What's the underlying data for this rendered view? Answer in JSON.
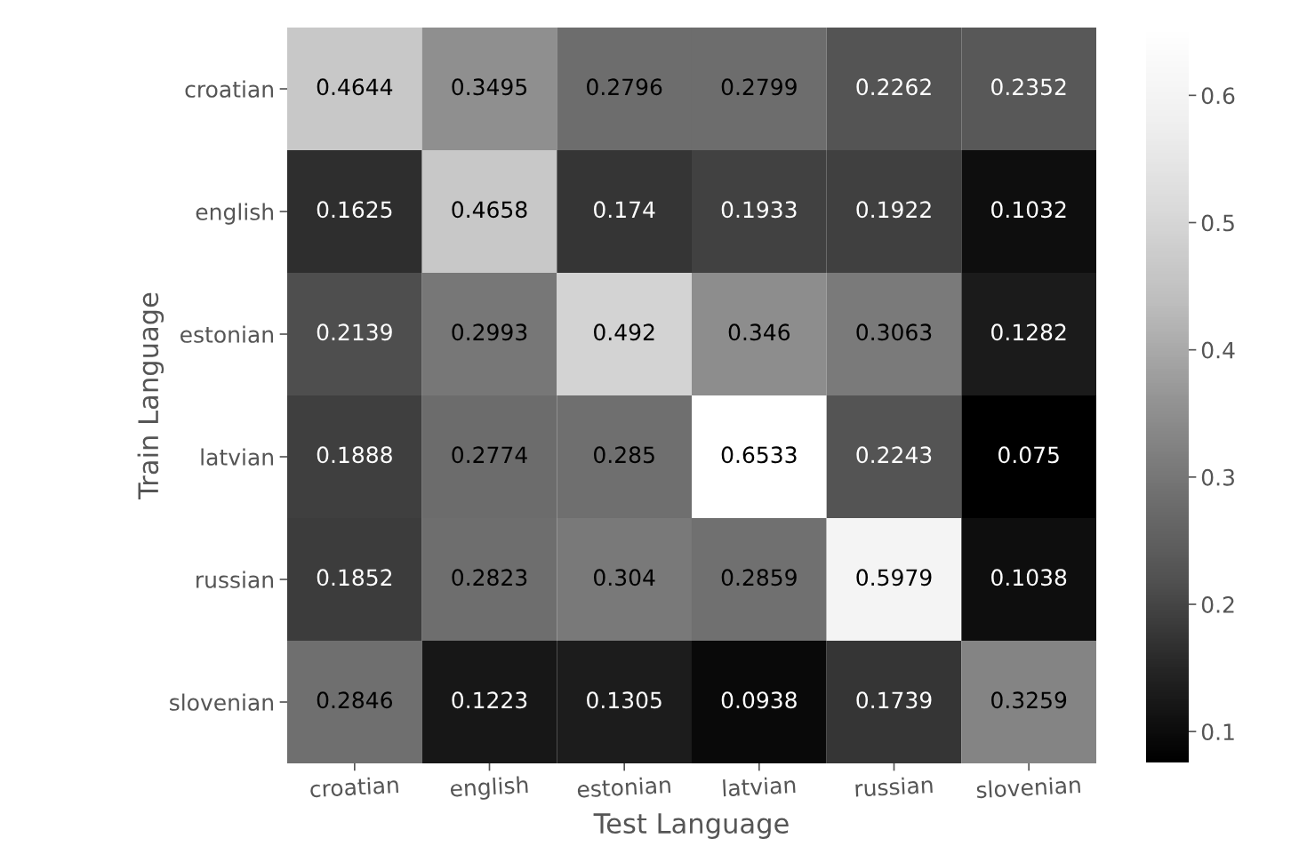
{
  "chart_data": {
    "type": "heatmap",
    "xlabel": "Test Language",
    "ylabel": "Train Language",
    "categories": [
      "croatian",
      "english",
      "estonian",
      "latvian",
      "russian",
      "slovenian"
    ],
    "y_categories": [
      "croatian",
      "english",
      "estonian",
      "latvian",
      "russian",
      "slovenian"
    ],
    "cells": [
      [
        0.4644,
        0.3495,
        0.2796,
        0.2799,
        0.2262,
        0.2352
      ],
      [
        0.1625,
        0.4658,
        0.174,
        0.1933,
        0.1922,
        0.1032
      ],
      [
        0.2139,
        0.2993,
        0.492,
        0.346,
        0.3063,
        0.1282
      ],
      [
        0.1888,
        0.2774,
        0.285,
        0.6533,
        0.2243,
        0.075
      ],
      [
        0.1852,
        0.2823,
        0.304,
        0.2859,
        0.5979,
        0.1038
      ],
      [
        0.2846,
        0.1223,
        0.1305,
        0.0938,
        0.1739,
        0.3259
      ]
    ],
    "clim": [
      0.075,
      0.6533
    ],
    "cticks": [
      0.1,
      0.2,
      0.3,
      0.4,
      0.5,
      0.6
    ],
    "data_labels": true
  }
}
